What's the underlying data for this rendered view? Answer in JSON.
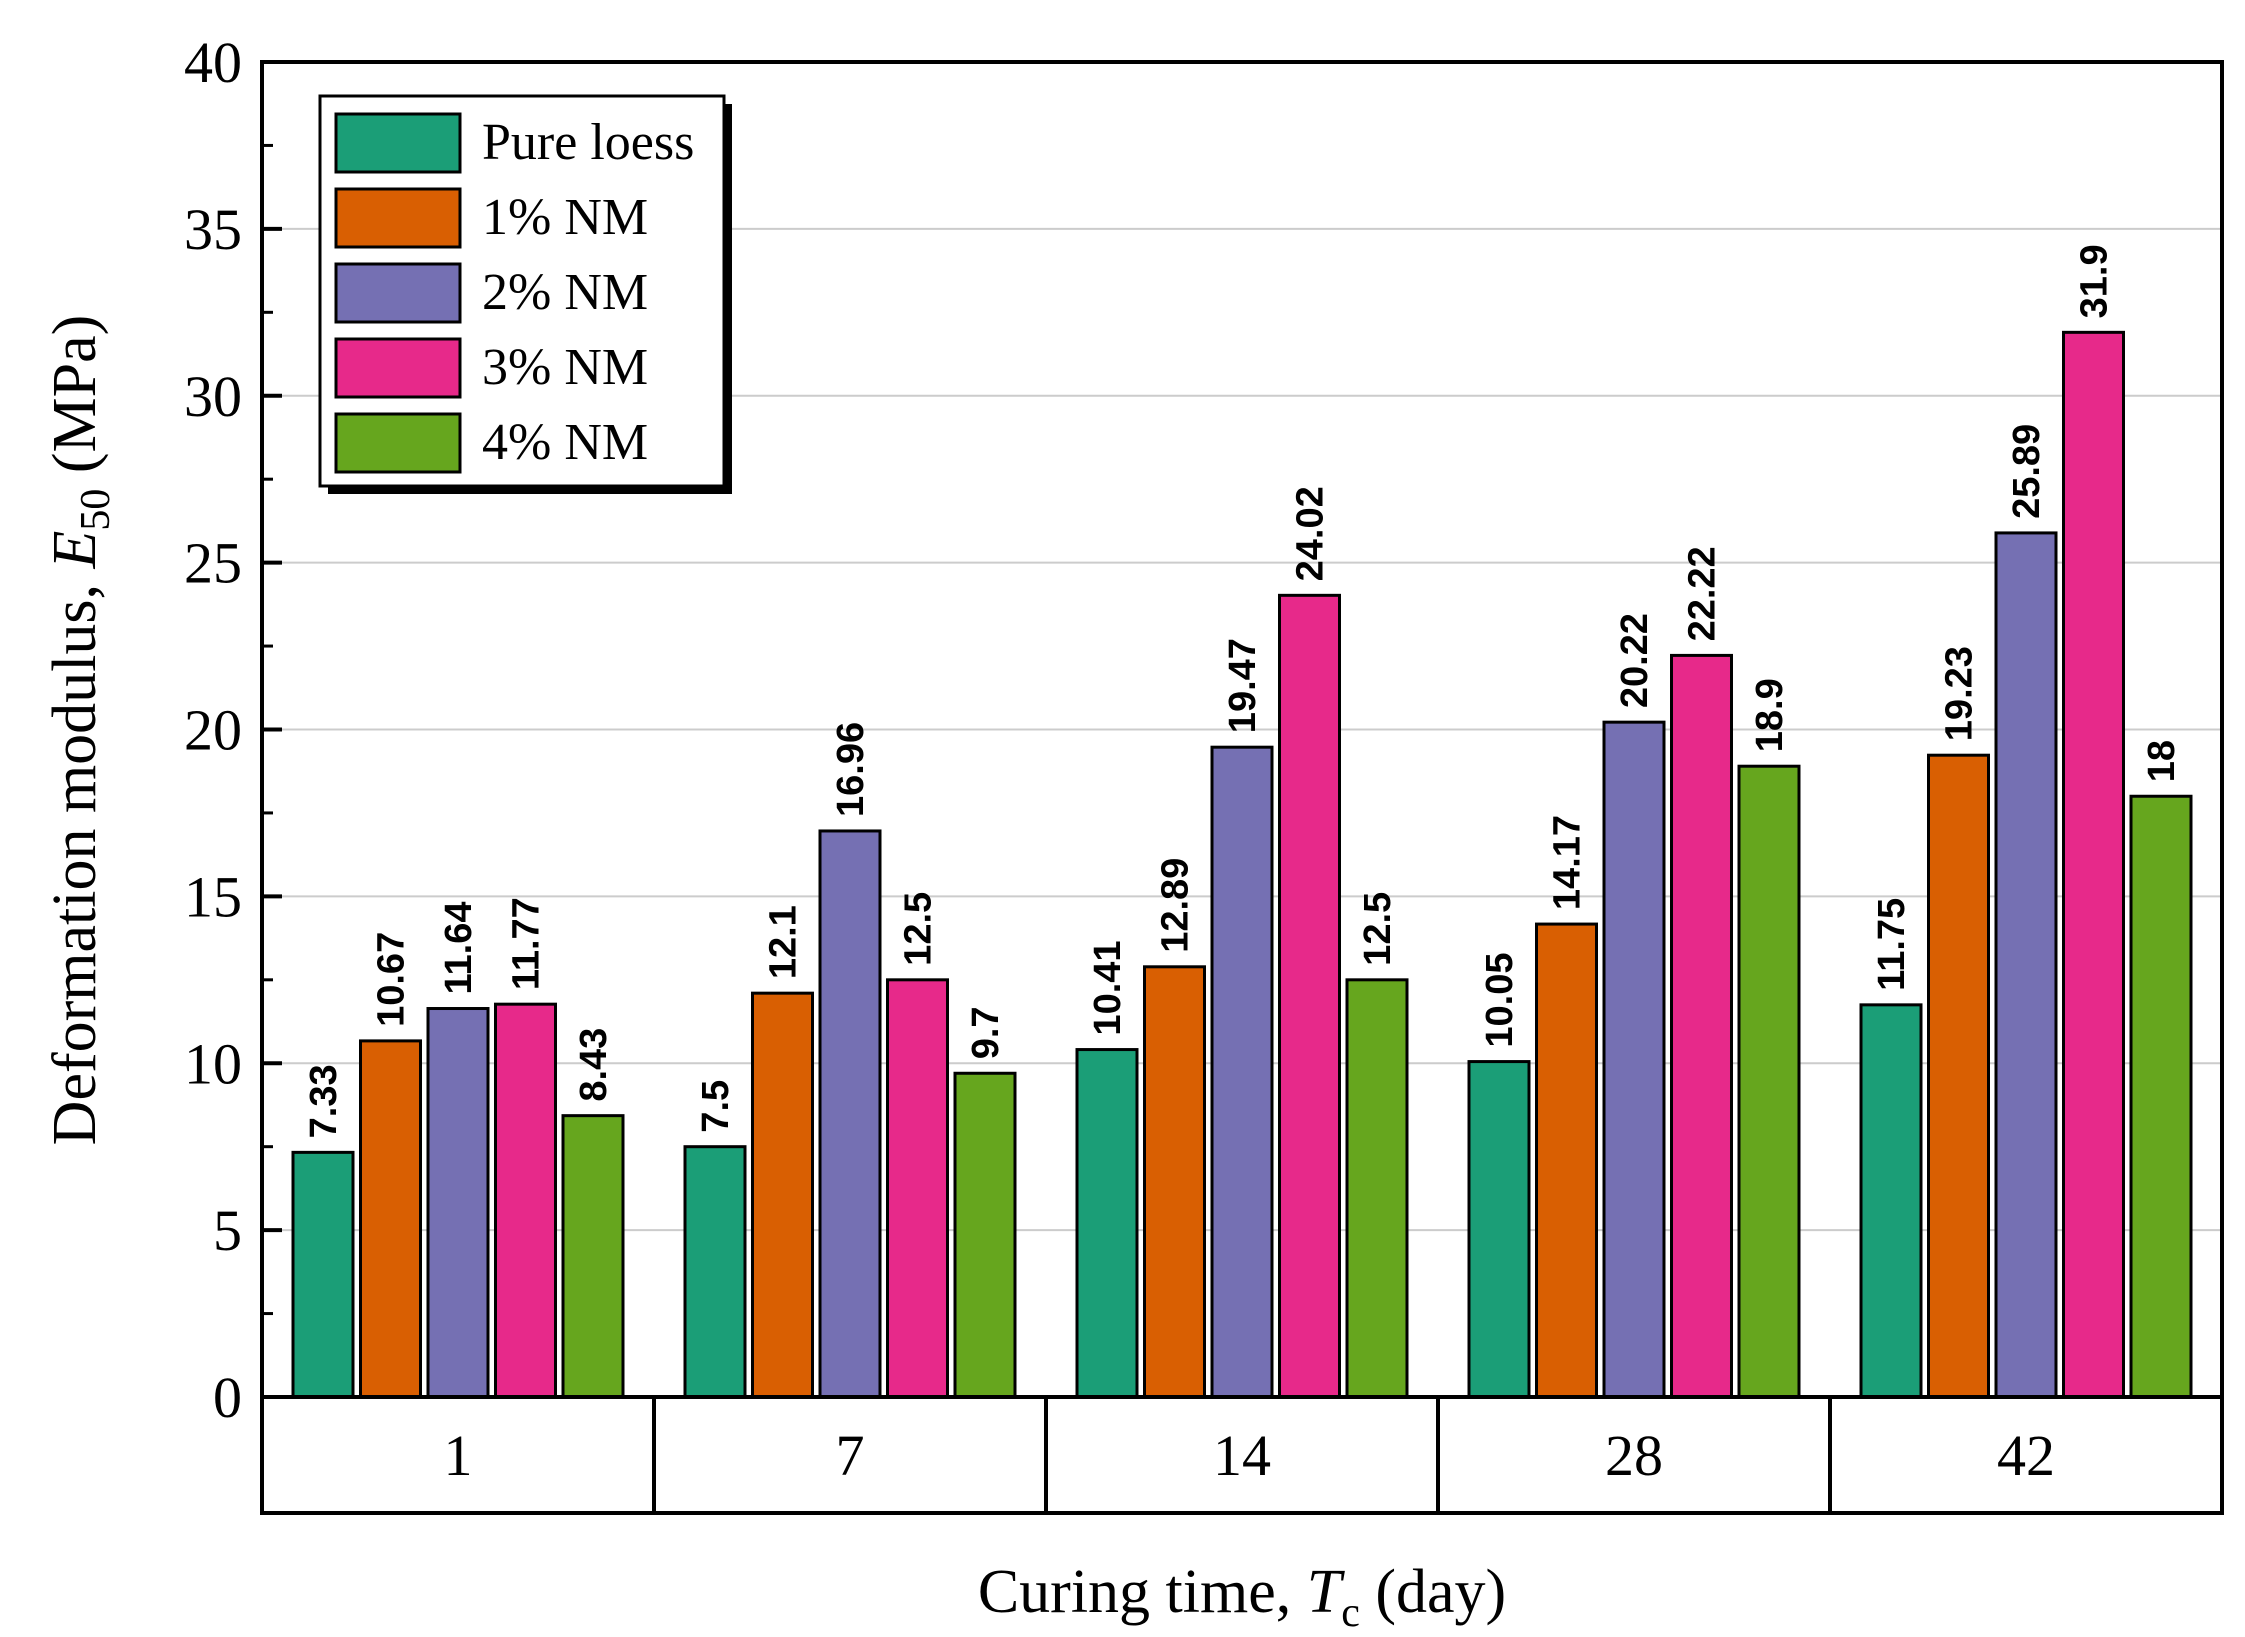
{
  "chart_data": {
    "type": "bar",
    "title": "",
    "xlabel_prefix": "Curing time, ",
    "xlabel_var": "T",
    "xlabel_sub": "c",
    "xlabel_suffix": " (day)",
    "ylabel_prefix": "Deformation modulus, ",
    "ylabel_var": "E",
    "ylabel_sub": "50",
    "ylabel_suffix": " (MPa)",
    "ylim": [
      0,
      40
    ],
    "yticks": [
      "0",
      "5",
      "10",
      "15",
      "20",
      "25",
      "30",
      "35",
      "40"
    ],
    "grid": true,
    "legend_position": "top-left",
    "categories": [
      "1",
      "7",
      "14",
      "28",
      "42"
    ],
    "series": [
      {
        "name": "Pure loess",
        "color": "#1b9e77",
        "values": [
          7.33,
          7.5,
          10.41,
          10.05,
          11.75
        ],
        "labels": [
          "7.33",
          "7.5",
          "10.41",
          "10.05",
          "11.75"
        ]
      },
      {
        "name": "1% NM",
        "color": "#d95f02",
        "values": [
          10.67,
          12.1,
          12.89,
          14.17,
          19.23
        ],
        "labels": [
          "10.67",
          "12.1",
          "12.89",
          "14.17",
          "19.23"
        ]
      },
      {
        "name": "2% NM",
        "color": "#7570b3",
        "values": [
          11.64,
          16.96,
          19.47,
          20.22,
          25.89
        ],
        "labels": [
          "11.64",
          "16.96",
          "19.47",
          "20.22",
          "25.89"
        ]
      },
      {
        "name": "3% NM",
        "color": "#e7298a",
        "values": [
          11.77,
          12.5,
          24.02,
          22.22,
          31.9
        ],
        "labels": [
          "11.77",
          "12.5",
          "24.02",
          "22.22",
          "31.9"
        ]
      },
      {
        "name": "4% NM",
        "color": "#66a61e",
        "values": [
          8.43,
          9.7,
          12.5,
          18.9,
          18
        ],
        "labels": [
          "8.43",
          "9.7",
          "12.5",
          "18.9",
          "18"
        ]
      }
    ]
  }
}
